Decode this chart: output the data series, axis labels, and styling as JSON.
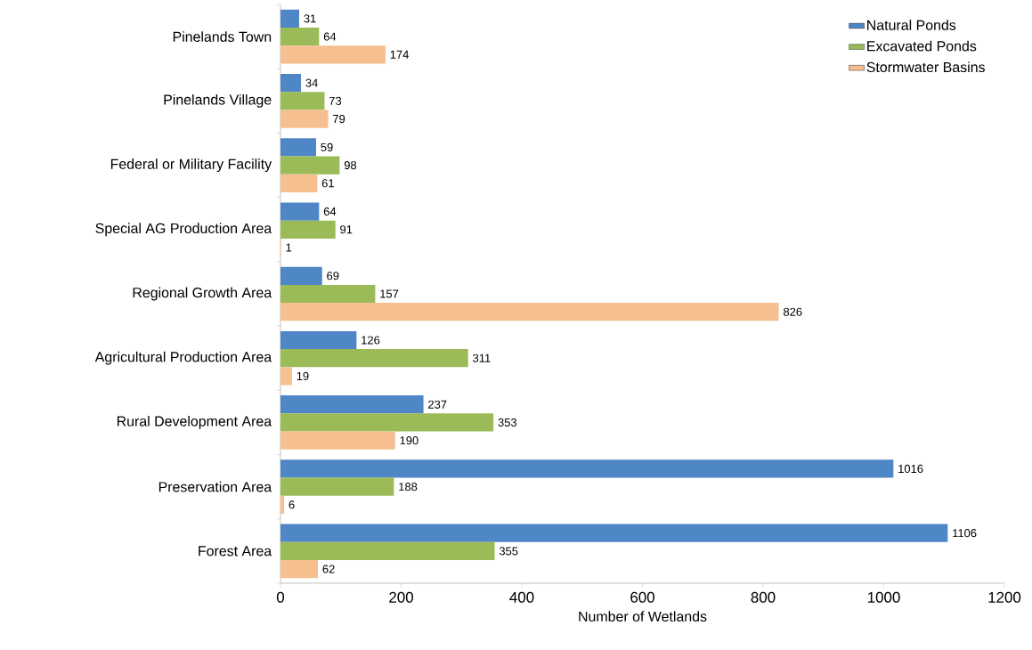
{
  "chart_data": {
    "type": "bar",
    "orientation": "horizontal",
    "xlabel": "Number of Wetlands",
    "categories": [
      "Pinelands Town",
      "Pinelands Village",
      "Federal or Military Facility",
      "Special AG Production Area",
      "Regional Growth Area",
      "Agricultural Production Area",
      "Rural Development Area",
      "Preservation Area",
      "Forest Area"
    ],
    "series": [
      {
        "name": "Natural Ponds",
        "color": "#4f86c6",
        "values": [
          31,
          34,
          59,
          64,
          69,
          126,
          237,
          1016,
          1106
        ]
      },
      {
        "name": "Excavated Ponds",
        "color": "#9bbb59",
        "values": [
          64,
          73,
          98,
          91,
          157,
          311,
          353,
          188,
          355
        ]
      },
      {
        "name": "Stormwater Basins",
        "color": "#f5bf8f",
        "values": [
          174,
          79,
          61,
          1,
          826,
          19,
          190,
          6,
          62
        ]
      }
    ],
    "xlim": [
      0,
      1200
    ],
    "xticks": [
      0,
      200,
      400,
      600,
      800,
      1000,
      1200
    ],
    "data_labels": true,
    "legend": "top right",
    "grid": false
  }
}
